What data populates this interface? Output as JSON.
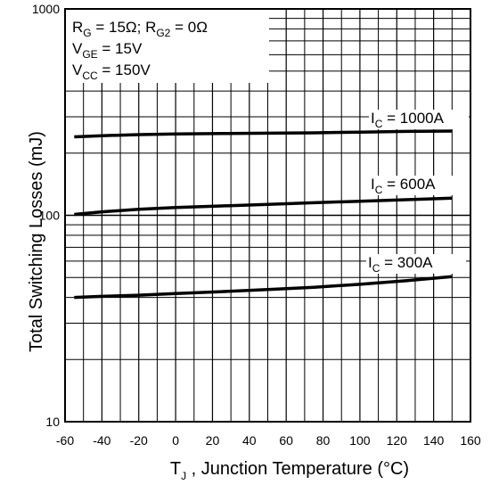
{
  "chart_data": {
    "type": "line",
    "title": "",
    "xlabel": "T",
    "xlabel_sub": "J",
    "xlabel_rest": " , Junction Temperature (°C)",
    "ylabel": "Total Switching Losses (mJ)",
    "xlim": [
      -60,
      160
    ],
    "ylim": [
      10,
      1000
    ],
    "yscale": "log",
    "grid": true,
    "x_ticks": [
      "-60",
      "-40",
      "-20",
      "0",
      "20",
      "40",
      "60",
      "80",
      "100",
      "120",
      "140",
      "160"
    ],
    "y_ticks": [
      "10",
      "100",
      "1000"
    ],
    "conditions": [
      {
        "main": "R",
        "sub": "G",
        "rest": "   = 15Ω; R",
        "sub2": "G2",
        "rest2": " = 0Ω"
      },
      {
        "main": "V",
        "sub": "GE",
        "rest": " = 15V"
      },
      {
        "main": "V",
        "sub": "CC",
        "rest": " = 150V"
      }
    ],
    "series": [
      {
        "name": "I_C = 1000A",
        "label_main": "I",
        "label_sub": "C",
        "label_rest": " = 1000A",
        "x": [
          -55,
          -40,
          -20,
          0,
          25,
          50,
          75,
          100,
          125,
          150
        ],
        "y": [
          240,
          243,
          246,
          248,
          249,
          250,
          251,
          253,
          255,
          256
        ]
      },
      {
        "name": "I_C = 600A",
        "label_main": "I",
        "label_sub": "C",
        "label_rest": " = 600A",
        "x": [
          -55,
          -40,
          -20,
          0,
          25,
          50,
          75,
          100,
          125,
          150
        ],
        "y": [
          101,
          104,
          107,
          109,
          111,
          113,
          115,
          117,
          119,
          121
        ]
      },
      {
        "name": "I_C = 300A",
        "label_main": "I",
        "label_sub": "C",
        "label_rest": " = 300A",
        "x": [
          -55,
          -40,
          -20,
          0,
          25,
          50,
          75,
          100,
          125,
          150
        ],
        "y": [
          40,
          40.5,
          41,
          41.8,
          42.7,
          43.7,
          44.8,
          46.3,
          48.2,
          50.5
        ]
      }
    ]
  }
}
